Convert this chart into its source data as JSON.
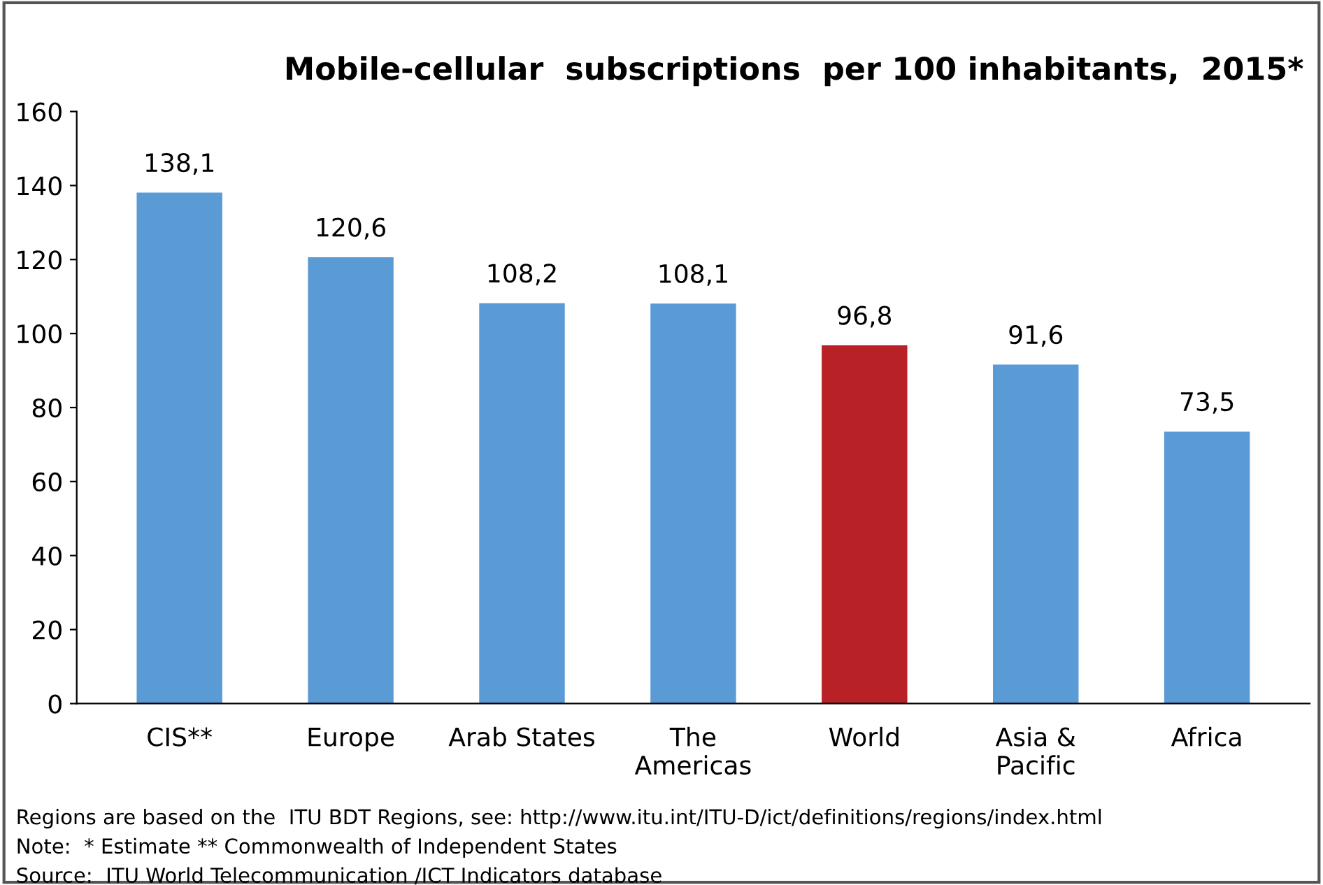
{
  "chart_data": {
    "type": "bar",
    "title": "Mobile-cellular  subscriptions  per 100 inhabitants,  2015*",
    "categories": [
      "CIS**",
      "Europe",
      "Arab States",
      "The\nAmericas",
      "World",
      "Asia &\nPacific",
      "Africa"
    ],
    "values": [
      138.1,
      120.6,
      108.2,
      108.1,
      96.8,
      91.6,
      73.5
    ],
    "value_labels": [
      "138,1",
      "120,6",
      "108,2",
      "108,1",
      "96,8",
      "91,6",
      "73,5"
    ],
    "colors": [
      "#5b9bd5",
      "#5b9bd5",
      "#5b9bd5",
      "#5b9bd5",
      "#b82125",
      "#5b9bd5",
      "#5b9bd5"
    ],
    "ylim": [
      0,
      160
    ],
    "yticks": [
      0,
      20,
      40,
      60,
      80,
      100,
      120,
      140,
      160
    ],
    "grid": false,
    "annotations": [
      "Regions are based on the  ITU BDT Regions, see: http://www.itu.int/ITU-D/ict/definitions/regions/index.html",
      "Note:  * Estimate ** Commonwealth of Independent States",
      "Source:  ITU World Telecommunication /ICT Indicators database"
    ]
  }
}
